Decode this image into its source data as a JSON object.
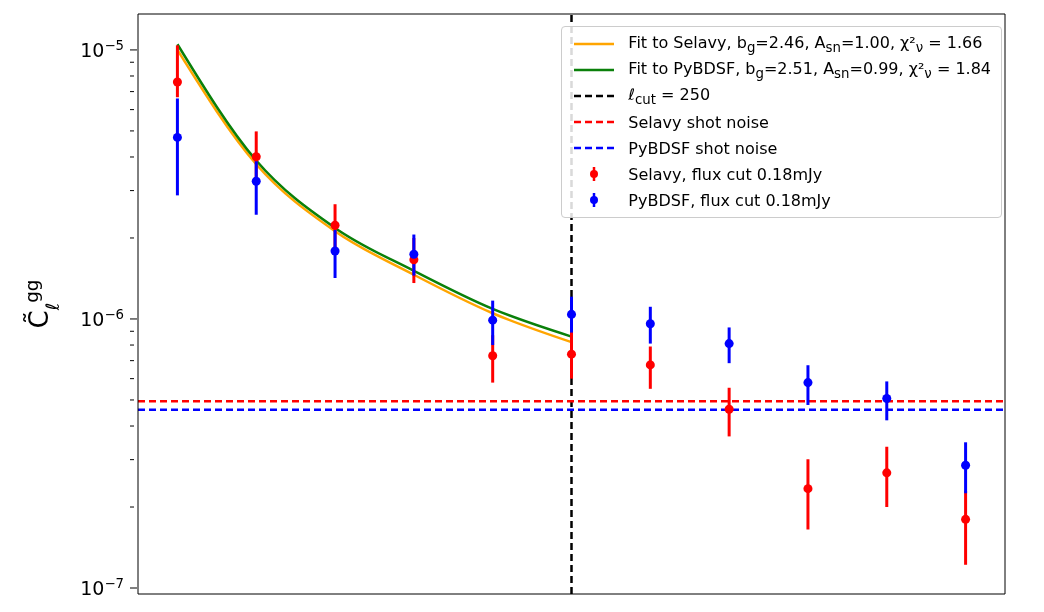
{
  "chart_data": {
    "type": "scatter",
    "ylabel": "C̃$_{ℓ}$$^{gg}$",
    "log": "y",
    "grid": false,
    "legend": "top right",
    "tick_labels": "y",
    "marker": "circle",
    "categories": [
      null,
      null,
      null,
      null,
      null,
      null,
      null,
      null,
      null,
      null,
      null
    ],
    "ylim": [
      9.5e-08,
      1.36e-05
    ],
    "yticks": [
      {
        "value": 1e-07,
        "label": "10$^{−7}$"
      },
      {
        "value": 2e-07,
        "label": null
      },
      {
        "value": 3e-07,
        "label": null
      },
      {
        "value": 4e-07,
        "label": null
      },
      {
        "value": 5e-07,
        "label": null
      },
      {
        "value": 6e-07,
        "label": null
      },
      {
        "value": 7e-07,
        "label": null
      },
      {
        "value": 8e-07,
        "label": null
      },
      {
        "value": 9e-07,
        "label": null
      },
      {
        "value": 1e-06,
        "label": "10$^{−6}$"
      },
      {
        "value": 2e-06,
        "label": null
      },
      {
        "value": 3e-06,
        "label": null
      },
      {
        "value": 4e-06,
        "label": null
      },
      {
        "value": 5e-06,
        "label": null
      },
      {
        "value": 6e-06,
        "label": null
      },
      {
        "value": 7e-06,
        "label": null
      },
      {
        "value": 8e-06,
        "label": null
      },
      {
        "value": 9e-06,
        "label": null
      },
      {
        "value": 1e-05,
        "label": "10$^{−5}$"
      }
    ],
    "series": [
      {
        "type": "line",
        "name": "Fit to Selavy, b$_{g}$=2.46, A$_{sn}$=1.00, χ²$_{ν}$ = 1.66",
        "color": "#ffa500",
        "line_style": "solid",
        "marker": "none",
        "values": [
          1e-05,
          3.76e-06,
          2.12e-06,
          1.46e-06,
          1.05e-06,
          8.2e-07,
          null,
          null,
          null,
          null,
          null
        ]
      },
      {
        "type": "line",
        "name": "Fit to PyBDSF, b$_{g}$=2.51, A$_{sn}$=0.99, χ²$_{ν}$ = 1.84",
        "color": "#0a800a",
        "line_style": "solid",
        "marker": "none",
        "values": [
          1.05e-05,
          3.88e-06,
          2.18e-06,
          1.51e-06,
          1.09e-06,
          8.6e-07,
          null,
          null,
          null,
          null,
          null
        ]
      },
      {
        "name": "Selavy, flux cut 0.18mJy",
        "color": "#ff0000",
        "values": [
          7.6e-06,
          4.01e-06,
          2.23e-06,
          1.66e-06,
          7.3e-07,
          7.4e-07,
          6.75e-07,
          4.62e-07,
          2.34e-07,
          2.68e-07,
          1.8e-07
        ],
        "errors": [
          [
            6.67e-06,
            1.04e-05
          ],
          [
            3.3e-06,
            4.98e-06
          ],
          [
            1.85e-06,
            2.67e-06
          ],
          [
            1.36e-06,
            2e-06
          ],
          [
            5.8e-07,
            8.7e-07
          ],
          [
            6e-07,
            9e-07
          ],
          [
            5.5e-07,
            7.9e-07
          ],
          [
            3.66e-07,
            5.55e-07
          ],
          [
            1.65e-07,
            3.01e-07
          ],
          [
            2e-07,
            3.35e-07
          ],
          [
            1.22e-07,
            2.3e-07
          ]
        ]
      },
      {
        "name": "PyBDSF, flux cut 0.18mJy",
        "color": "#0000ff",
        "values": [
          4.73e-06,
          3.25e-06,
          1.79e-06,
          1.74e-06,
          9.9e-07,
          1.04e-06,
          9.6e-07,
          8.1e-07,
          5.8e-07,
          5.06e-07,
          2.86e-07
        ],
        "errors": [
          [
            2.88e-06,
            6.6e-06
          ],
          [
            2.44e-06,
            3.86e-06
          ],
          [
            1.42e-06,
            2.14e-06
          ],
          [
            1.45e-06,
            2.06e-06
          ],
          [
            8e-07,
            1.17e-06
          ],
          [
            8.9e-07,
            1.21e-06
          ],
          [
            8.1e-07,
            1.11e-06
          ],
          [
            6.85e-07,
            9.3e-07
          ],
          [
            4.79e-07,
            6.73e-07
          ],
          [
            4.2e-07,
            5.86e-07
          ],
          [
            2.25e-07,
            3.48e-07
          ]
        ]
      }
    ],
    "ref_lines": [
      {
        "axis": "x",
        "label": "ℓ$_{cut}$ = 250",
        "color": "#000000",
        "line_style": "dashed"
      },
      {
        "axis": "y",
        "value": 4.95e-07,
        "label": "Selavy shot noise",
        "color": "#ff0000",
        "line_style": "dashed"
      },
      {
        "axis": "y",
        "value": 4.6e-07,
        "label": "PyBDSF shot noise",
        "color": "#0000ff",
        "line_style": "dashed"
      }
    ]
  }
}
